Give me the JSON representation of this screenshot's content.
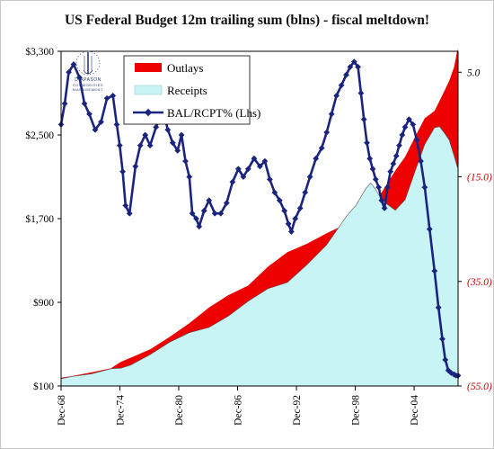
{
  "chart_data": {
    "type": "area+line",
    "title": "US Federal Budget 12m trailing sum (blns) - fiscal meltdown!",
    "x_ticks": [
      "Dec-68",
      "Dec-74",
      "Dec-80",
      "Dec-86",
      "Dec-92",
      "Dec-98",
      "Dec-04"
    ],
    "x_range": [
      1968.92,
      2009.4
    ],
    "y_left": {
      "ticks": [
        "$100",
        "$900",
        "$1,700",
        "$2,500",
        "$3,300"
      ],
      "range": [
        100,
        3300
      ]
    },
    "y_right": {
      "ticks": [
        "5.0",
        "(15.0)",
        "(35.0)",
        "(55.0)"
      ],
      "range": [
        -55,
        9
      ]
    },
    "series": [
      {
        "name": "Outlays",
        "axis": "left",
        "style": "area",
        "color": "#ee0000",
        "x": [
          1968.92,
          1970,
          1972,
          1974,
          1975,
          1976,
          1978,
          1980,
          1982,
          1984,
          1986,
          1988,
          1990,
          1992,
          1994,
          1996,
          1998,
          1999,
          2000,
          2001,
          2002,
          2003,
          2004,
          2005,
          2006,
          2007,
          2008,
          2008.5,
          2009,
          2009.3,
          2009.4
        ],
        "y": [
          180,
          195,
          230,
          270,
          330,
          370,
          450,
          570,
          700,
          850,
          970,
          1060,
          1240,
          1380,
          1460,
          1560,
          1650,
          1700,
          1780,
          1860,
          2010,
          2160,
          2290,
          2480,
          2660,
          2730,
          2920,
          3020,
          3150,
          3300,
          3320
        ]
      },
      {
        "name": "Receipts",
        "axis": "left",
        "style": "area",
        "color": "#c9f4f6",
        "x": [
          1968.92,
          1970,
          1972,
          1974,
          1975,
          1976,
          1978,
          1980,
          1982,
          1984,
          1986,
          1988,
          1990,
          1992,
          1994,
          1996,
          1998,
          1999,
          2000,
          2000.5,
          2001,
          2001.5,
          2002,
          2003,
          2004,
          2005,
          2006,
          2007,
          2007.5,
          2008,
          2008.5,
          2009,
          2009.3,
          2009.4
        ],
        "y": [
          170,
          190,
          215,
          265,
          270,
          300,
          400,
          520,
          610,
          660,
          770,
          910,
          1030,
          1090,
          1260,
          1450,
          1720,
          1830,
          1990,
          2040,
          1980,
          1900,
          1850,
          1780,
          1880,
          2150,
          2410,
          2570,
          2580,
          2520,
          2450,
          2300,
          2200,
          2180
        ]
      },
      {
        "name": "BAL/RCPT% (Lhs)",
        "axis": "right",
        "style": "line-markers",
        "color": "#1a237e",
        "x": [
          1968.92,
          1969.3,
          1969.7,
          1970.2,
          1970.8,
          1971.3,
          1971.8,
          1972.4,
          1973.0,
          1973.6,
          1974.2,
          1974.6,
          1974.9,
          1975.2,
          1975.5,
          1975.9,
          1976.5,
          1977.0,
          1977.5,
          1978.0,
          1978.6,
          1979.3,
          1979.8,
          1980.3,
          1980.8,
          1981.2,
          1981.6,
          1982.0,
          1982.3,
          1982.7,
          1983.0,
          1983.5,
          1984.0,
          1984.6,
          1985.2,
          1985.8,
          1986.4,
          1987.0,
          1987.5,
          1988.0,
          1988.6,
          1989.2,
          1989.7,
          1990.2,
          1990.7,
          1991.2,
          1991.7,
          1992.1,
          1992.4,
          1992.8,
          1993.3,
          1993.8,
          1994.3,
          1994.9,
          1995.5,
          1996.0,
          1996.5,
          1997.0,
          1997.5,
          1998.0,
          1998.4,
          1998.8,
          1999.2,
          1999.5,
          1999.8,
          2000.1,
          2000.4,
          2000.7,
          2001.0,
          2001.3,
          2001.6,
          2001.9,
          2002.2,
          2002.5,
          2002.8,
          2003.1,
          2003.4,
          2003.7,
          2004.0,
          2004.4,
          2004.8,
          2005.2,
          2005.6,
          2006.0,
          2006.5,
          2007.0,
          2007.4,
          2007.8,
          2008.1,
          2008.4,
          2008.7,
          2009.0,
          2009.2,
          2009.4
        ],
        "y": [
          -5.0,
          -1.0,
          5.0,
          6.5,
          4.0,
          -1.0,
          -3.0,
          -6.0,
          -4.5,
          0.0,
          0.5,
          -5.0,
          -9.0,
          -14.0,
          -20.5,
          -22.0,
          -13.0,
          -9.0,
          -7.0,
          -9.0,
          -5.5,
          -2.0,
          -6.0,
          -8.5,
          -10.0,
          -7.0,
          -12.0,
          -15.0,
          -22.0,
          -23.0,
          -24.5,
          -21.5,
          -19.5,
          -22.0,
          -22.0,
          -20.0,
          -16.0,
          -13.5,
          -15.0,
          -13.5,
          -11.5,
          -13.0,
          -12.0,
          -15.5,
          -18.0,
          -19.5,
          -21.5,
          -24.0,
          -25.5,
          -23.0,
          -21.0,
          -18.0,
          -15.0,
          -11.5,
          -9.5,
          -6.5,
          -3.0,
          0.5,
          2.5,
          4.5,
          6.0,
          7.0,
          6.0,
          1.0,
          -4.0,
          -8.5,
          -11.5,
          -13.5,
          -15.5,
          -17.0,
          -19.5,
          -21.0,
          -17.0,
          -14.0,
          -12.5,
          -11.0,
          -9.0,
          -7.0,
          -5.5,
          -4.0,
          -5.0,
          -8.0,
          -12.0,
          -17.0,
          -25.0,
          -33.0,
          -40.0,
          -46.0,
          -50.0,
          -52.0,
          -52.5,
          -52.8,
          -53.0,
          -53.0
        ]
      }
    ],
    "legend": {
      "position": "top-left",
      "entries": [
        "Outlays",
        "Receipts",
        "BAL/RCPT% (Lhs)"
      ]
    },
    "grid": false
  },
  "logo": {
    "name": "shield-logo",
    "lines": [
      "DIAPASON",
      "COMMODITIES",
      "MANAGEMENT"
    ]
  }
}
